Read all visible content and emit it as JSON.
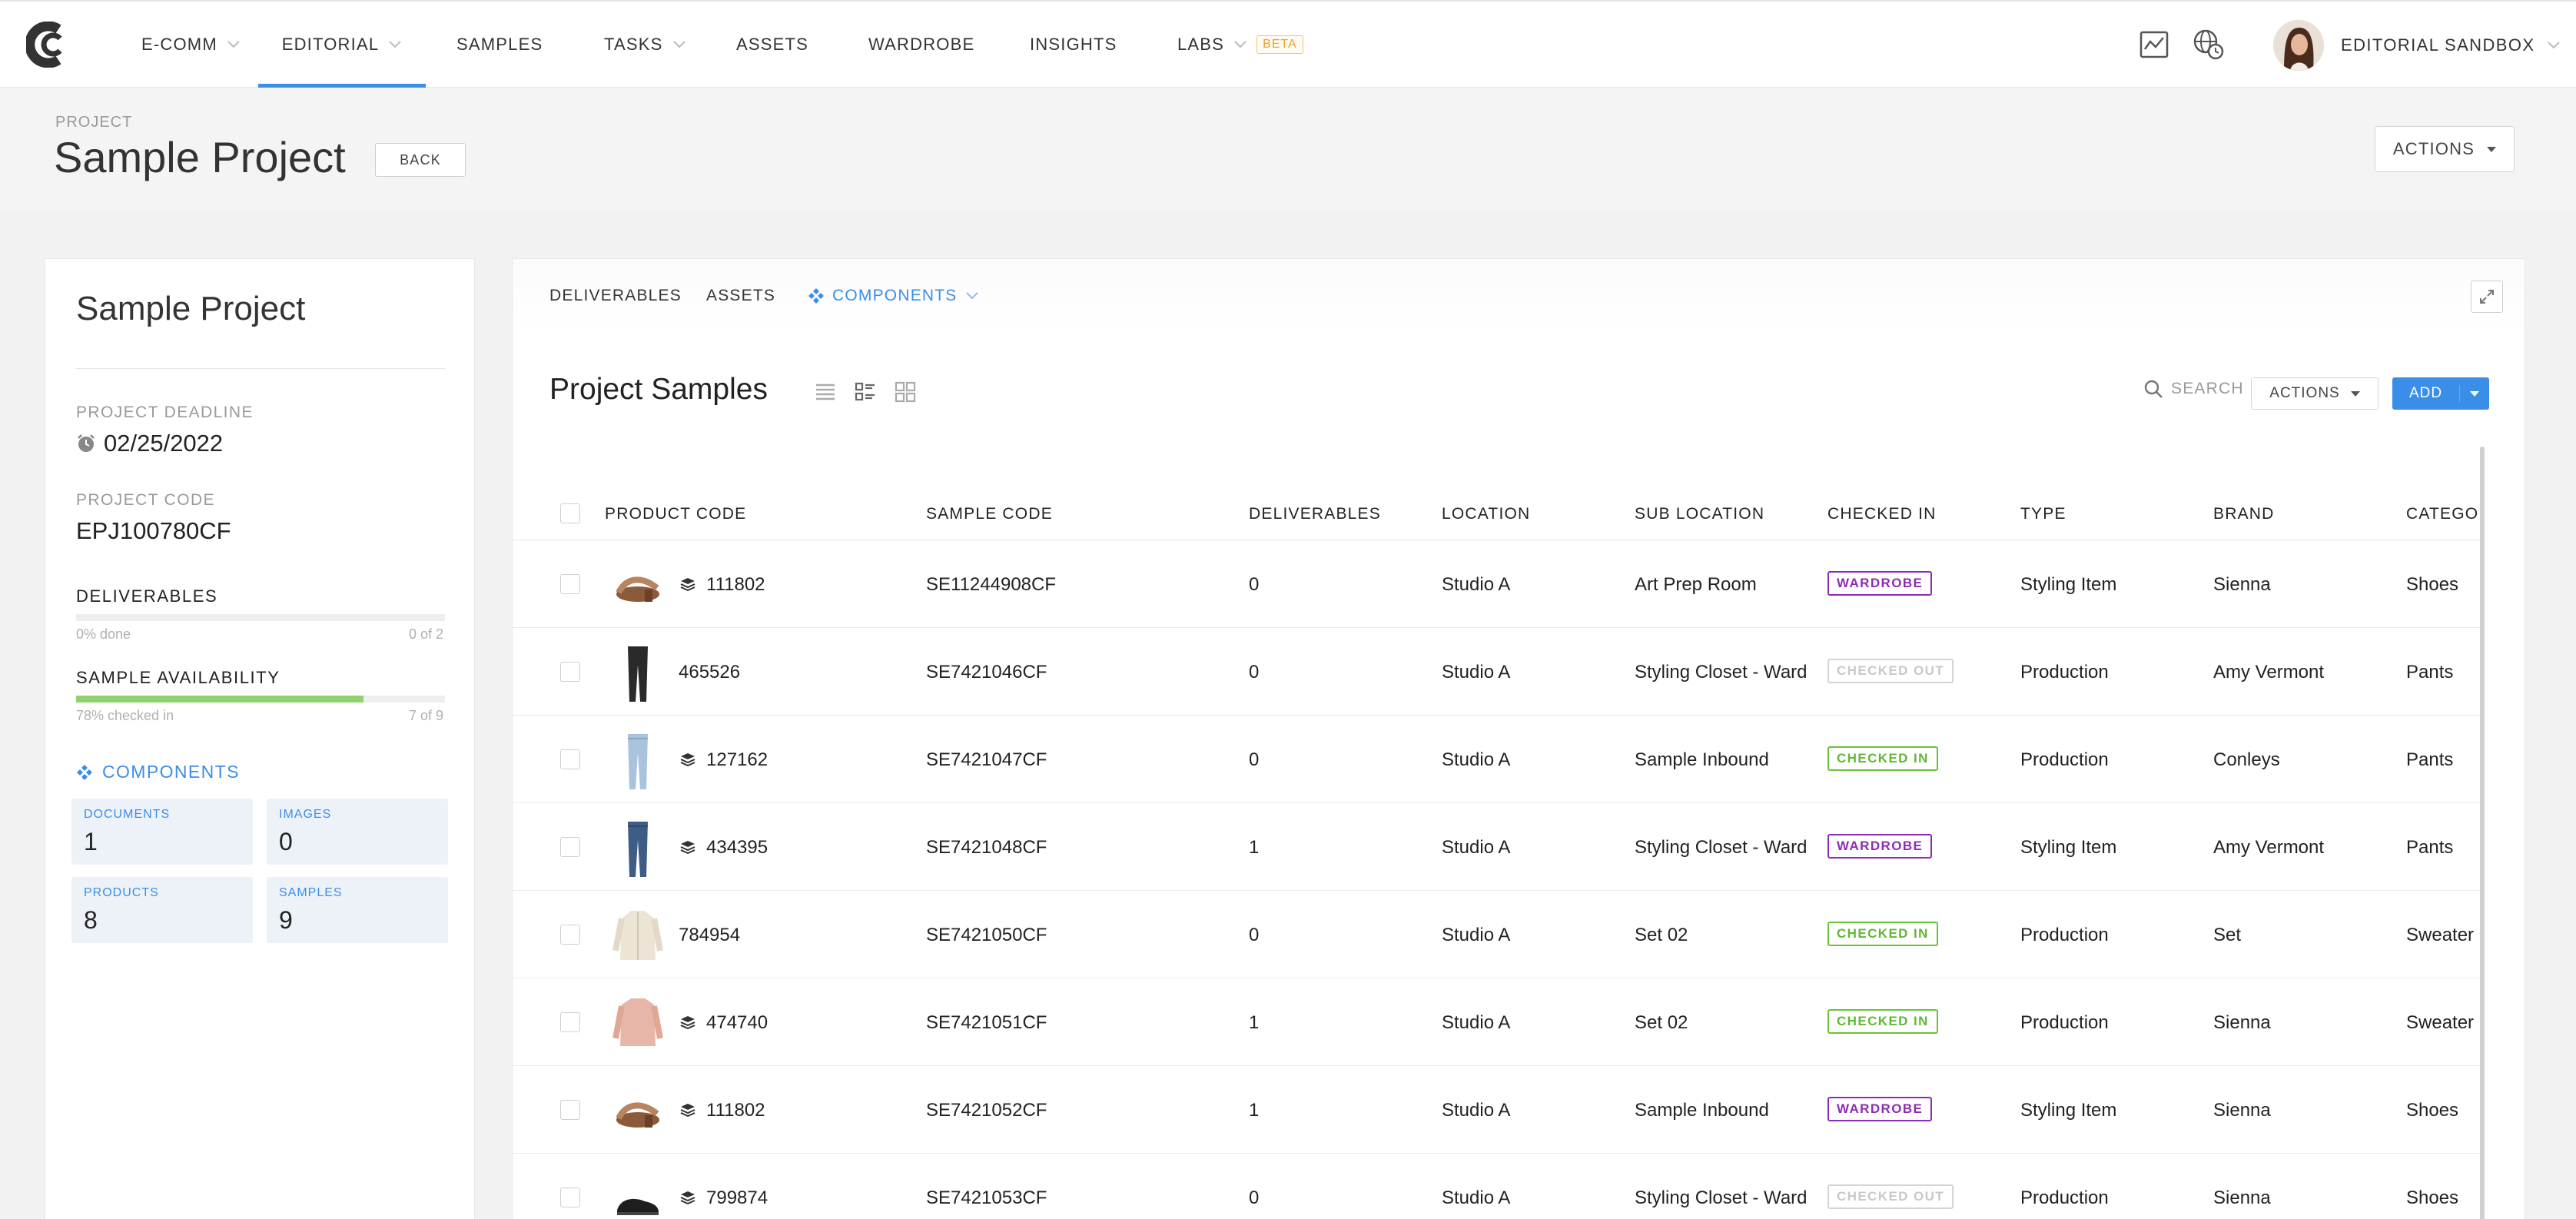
{
  "nav": {
    "items": [
      {
        "label": "E-COMM",
        "has_chevron": true
      },
      {
        "label": "EDITORIAL",
        "has_chevron": true,
        "active": true
      },
      {
        "label": "SAMPLES",
        "has_chevron": false
      },
      {
        "label": "TASKS",
        "has_chevron": true
      },
      {
        "label": "ASSETS",
        "has_chevron": false
      },
      {
        "label": "WARDROBE",
        "has_chevron": false
      },
      {
        "label": "INSIGHTS",
        "has_chevron": false
      },
      {
        "label": "LABS",
        "has_chevron": true
      }
    ],
    "beta_label": "BETA",
    "user_label": "EDITORIAL SANDBOX",
    "icons": [
      "analytics-icon",
      "globe-clock-icon"
    ],
    "accent_color": "#3b8ee8"
  },
  "header": {
    "crumb": "PROJECT",
    "title": "Sample Project",
    "back_label": "BACK",
    "actions_label": "ACTIONS"
  },
  "sidebar": {
    "title": "Sample Project",
    "deadline_label": "PROJECT DEADLINE",
    "deadline_value": "02/25/2022",
    "code_label": "PROJECT CODE",
    "code_value": "EPJ100780CF",
    "deliverables_label": "DELIVERABLES",
    "deliverables_progress": 0,
    "deliverables_done": "0% done",
    "deliverables_count": "0 of 2",
    "availability_label": "SAMPLE AVAILABILITY",
    "availability_progress": 0.78,
    "availability_done": "78% checked in",
    "availability_count": "7 of 9",
    "components_label": "COMPONENTS",
    "components": {
      "documents": {
        "label": "DOCUMENTS",
        "value": "1"
      },
      "images": {
        "label": "IMAGES",
        "value": "0"
      },
      "products": {
        "label": "PRODUCTS",
        "value": "8"
      },
      "samples": {
        "label": "SAMPLES",
        "value": "9"
      }
    }
  },
  "main": {
    "tabs": {
      "deliverables": "DELIVERABLES",
      "assets": "ASSETS",
      "components": "COMPONENTS"
    },
    "section_title": "Project Samples",
    "search_label": "SEARCH",
    "actions_label": "ACTIONS",
    "add_label": "ADD",
    "columns": {
      "product_code": "PRODUCT CODE",
      "sample_code": "SAMPLE CODE",
      "deliverables": "DELIVERABLES",
      "location": "LOCATION",
      "sub_location": "SUB LOCATION",
      "checked_in": "CHECKED IN",
      "type": "TYPE",
      "brand": "BRAND",
      "category": "CATEGO"
    },
    "rows": [
      {
        "thumb": "sandal",
        "stack": true,
        "product_code": "111802",
        "sample_code": "SE11244908CF",
        "deliverables": "0",
        "location": "Studio A",
        "sub_location": "Art Prep Room",
        "status": "WARDROBE",
        "status_kind": "wardrobe",
        "type": "Styling Item",
        "brand": "Sienna",
        "category": "Shoes"
      },
      {
        "thumb": "black-pants",
        "stack": false,
        "product_code": "465526",
        "sample_code": "SE7421046CF",
        "deliverables": "0",
        "location": "Studio A",
        "sub_location": "Styling Closet - Ward",
        "status": "CHECKED OUT",
        "status_kind": "out",
        "type": "Production",
        "brand": "Amy Vermont",
        "category": "Pants"
      },
      {
        "thumb": "light-jeans",
        "stack": true,
        "product_code": "127162",
        "sample_code": "SE7421047CF",
        "deliverables": "0",
        "location": "Studio A",
        "sub_location": "Sample Inbound",
        "status": "CHECKED IN",
        "status_kind": "in",
        "type": "Production",
        "brand": "Conleys",
        "category": "Pants"
      },
      {
        "thumb": "dark-jeans",
        "stack": true,
        "product_code": "434395",
        "sample_code": "SE7421048CF",
        "deliverables": "1",
        "location": "Studio A",
        "sub_location": "Styling Closet - Ward",
        "status": "WARDROBE",
        "status_kind": "wardrobe",
        "type": "Styling Item",
        "brand": "Amy Vermont",
        "category": "Pants"
      },
      {
        "thumb": "cream-cardigan",
        "stack": false,
        "product_code": "784954",
        "sample_code": "SE7421050CF",
        "deliverables": "0",
        "location": "Studio A",
        "sub_location": "Set 02",
        "status": "CHECKED IN",
        "status_kind": "in",
        "type": "Production",
        "brand": "Set",
        "category": "Sweater"
      },
      {
        "thumb": "pink-sweater",
        "stack": true,
        "product_code": "474740",
        "sample_code": "SE7421051CF",
        "deliverables": "1",
        "location": "Studio A",
        "sub_location": "Set 02",
        "status": "CHECKED IN",
        "status_kind": "in",
        "type": "Production",
        "brand": "Sienna",
        "category": "Sweater"
      },
      {
        "thumb": "sandal",
        "stack": true,
        "product_code": "111802",
        "sample_code": "SE7421052CF",
        "deliverables": "1",
        "location": "Studio A",
        "sub_location": "Sample Inbound",
        "status": "WARDROBE",
        "status_kind": "wardrobe",
        "type": "Styling Item",
        "brand": "Sienna",
        "category": "Shoes"
      },
      {
        "thumb": "black-shoe",
        "stack": true,
        "product_code": "799874",
        "sample_code": "SE7421053CF",
        "deliverables": "0",
        "location": "Studio A",
        "sub_location": "Styling Closet - Ward",
        "status": "CHECKED OUT",
        "status_kind": "out",
        "type": "Production",
        "brand": "Sienna",
        "category": "Shoes"
      }
    ]
  }
}
